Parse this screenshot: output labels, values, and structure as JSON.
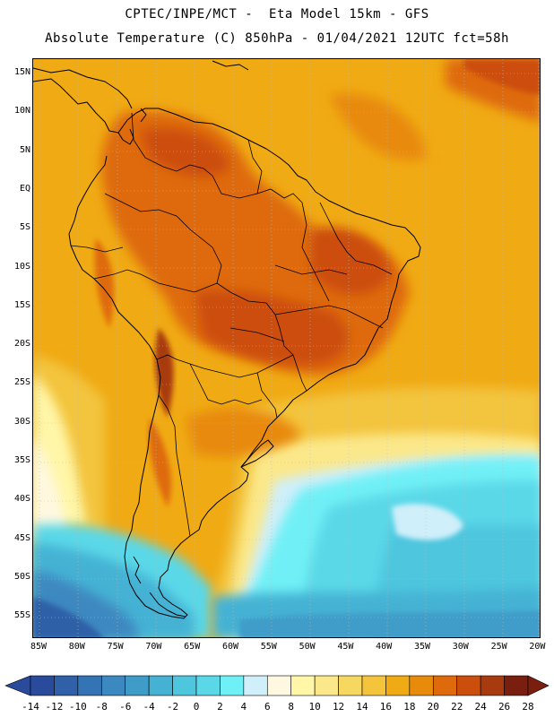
{
  "header": {
    "line1": "CPTEC/INPE/MCT -  Eta Model 15km - GFS",
    "line2": "Absolute Temperature (C) 850hPa - 01/04/2021 12UTC fct=58h"
  },
  "map": {
    "lat_labels": [
      "15N",
      "10N",
      "5N",
      "EQ",
      "5S",
      "10S",
      "15S",
      "20S",
      "25S",
      "30S",
      "35S",
      "40S",
      "45S",
      "50S",
      "55S"
    ],
    "lon_labels": [
      "85W",
      "80W",
      "75W",
      "70W",
      "65W",
      "60W",
      "55W",
      "50W",
      "45W",
      "40W",
      "35W",
      "30W",
      "25W",
      "20W"
    ],
    "grid": "dotted",
    "coastline_color": "#000000"
  },
  "colorbar": {
    "labels": [
      "-14",
      "-12",
      "-10",
      "-8",
      "-6",
      "-4",
      "-2",
      "0",
      "2",
      "4",
      "6",
      "8",
      "10",
      "12",
      "14",
      "16",
      "18",
      "20",
      "22",
      "24",
      "26",
      "28"
    ],
    "colors": [
      "#2a4a9c",
      "#2f60a8",
      "#3574b4",
      "#3c88c0",
      "#3f9cc8",
      "#45b2d4",
      "#4ec6de",
      "#5ad8e8",
      "#6ff0f6",
      "#cfeffa",
      "#fff8e0",
      "#fff6a8",
      "#fbe88a",
      "#f6d860",
      "#f3c43c",
      "#f0aa14",
      "#e88a0a",
      "#de6a0c",
      "#cc4e0c",
      "#a83a10",
      "#7a1e10"
    ]
  }
}
